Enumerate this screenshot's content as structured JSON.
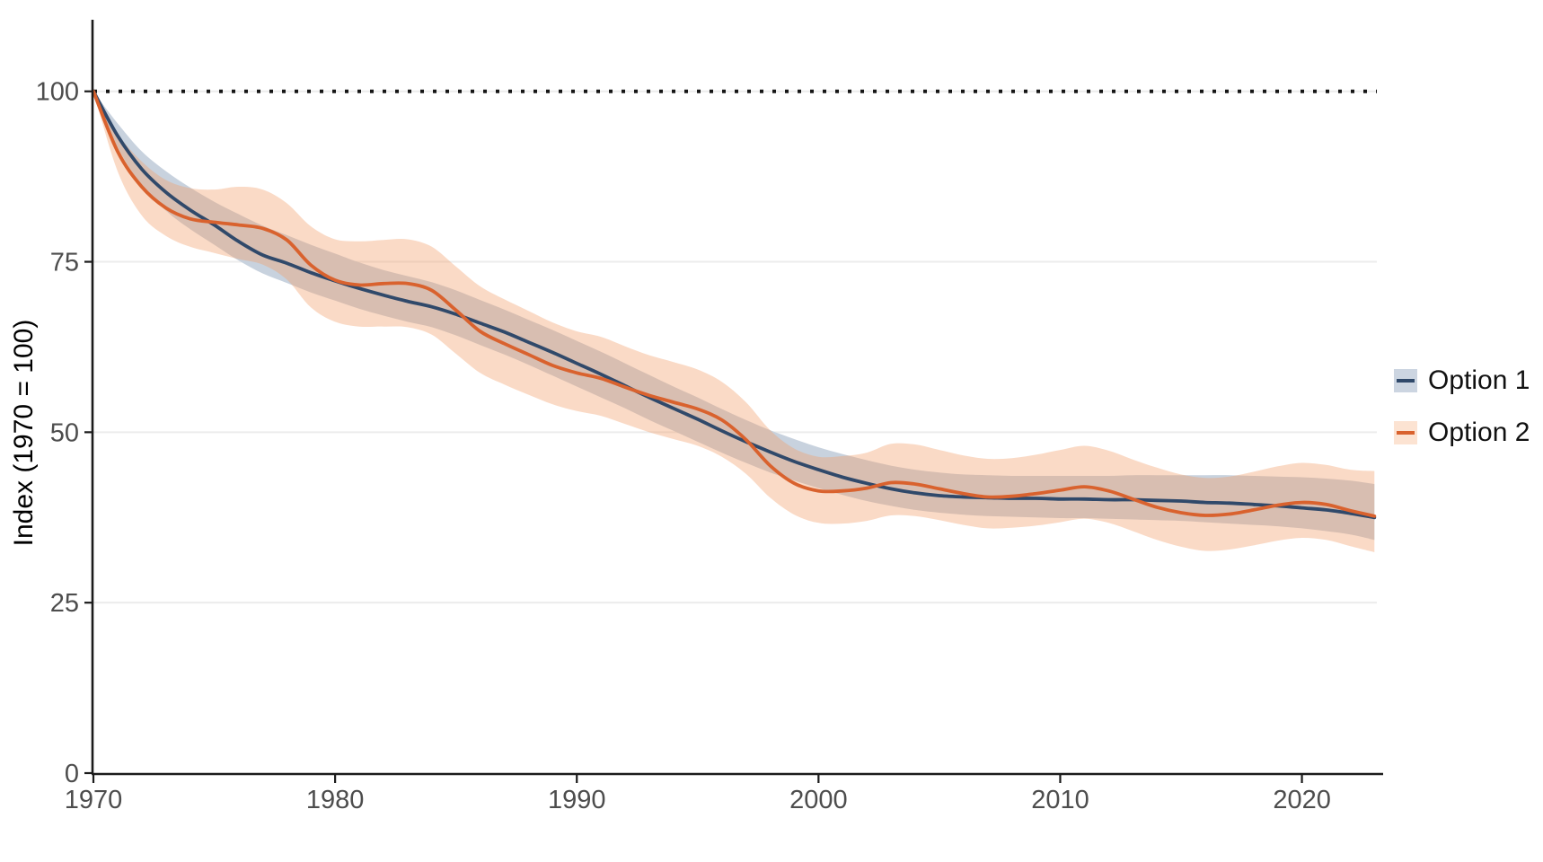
{
  "chart_data": {
    "type": "line",
    "title": "",
    "xlabel": "",
    "ylabel": "Index (1970 = 100)",
    "x_ticks": [
      1970,
      1980,
      1990,
      2000,
      2010,
      2020
    ],
    "y_ticks": [
      0,
      25,
      50,
      75,
      100
    ],
    "xlim": [
      1970,
      2023.1
    ],
    "ylim": [
      0,
      110.5
    ],
    "grid": "horizontal",
    "gridline_color": "#ececec",
    "axis_color": "#1b1b1b",
    "tick_label_color": "#4d4d4d",
    "reference_line": {
      "y": 100,
      "style": "dotted",
      "color": "#161616"
    },
    "legend_position": "right",
    "years": [
      1970,
      1971,
      1972,
      1973,
      1974,
      1975,
      1976,
      1977,
      1978,
      1979,
      1980,
      1981,
      1982,
      1983,
      1984,
      1985,
      1986,
      1987,
      1988,
      1989,
      1990,
      1991,
      1992,
      1993,
      1994,
      1995,
      1996,
      1997,
      1998,
      1999,
      2000,
      2001,
      2002,
      2003,
      2004,
      2005,
      2006,
      2007,
      2008,
      2009,
      2010,
      2011,
      2012,
      2013,
      2014,
      2015,
      2016,
      2017,
      2018,
      2019,
      2020,
      2021,
      2022,
      2023
    ],
    "series": [
      {
        "name": "Option 1",
        "color": "#30496a",
        "band_fill": "#c8d2de",
        "band_opacity": 1,
        "key_fill": "#ccd5e1",
        "values": [
          100,
          93.5,
          88.6,
          85.2,
          82.6,
          80.4,
          78.0,
          76.0,
          74.8,
          73.4,
          72.2,
          71.1,
          70.1,
          69.2,
          68.4,
          67.3,
          66.0,
          64.7,
          63.2,
          61.7,
          60.1,
          58.5,
          56.8,
          55.1,
          53.5,
          51.9,
          50.2,
          48.6,
          47.1,
          45.7,
          44.5,
          43.4,
          42.5,
          41.7,
          41.1,
          40.7,
          40.5,
          40.4,
          40.3,
          40.3,
          40.2,
          40.2,
          40.1,
          40.1,
          40.0,
          39.9,
          39.7,
          39.6,
          39.4,
          39.2,
          38.9,
          38.6,
          38.1,
          37.5
        ],
        "lower": [
          100,
          91.8,
          86.2,
          82.5,
          79.8,
          77.5,
          75.2,
          73.3,
          71.9,
          70.5,
          69.3,
          68.1,
          67.1,
          66.2,
          65.4,
          64.2,
          62.8,
          61.4,
          59.9,
          58.3,
          56.7,
          55.1,
          53.5,
          51.8,
          50.2,
          48.6,
          47.0,
          45.5,
          44.1,
          42.9,
          41.8,
          40.8,
          39.9,
          39.2,
          38.6,
          38.2,
          37.9,
          37.7,
          37.6,
          37.5,
          37.4,
          37.4,
          37.3,
          37.2,
          37.1,
          37.0,
          36.8,
          36.6,
          36.4,
          36.2,
          35.9,
          35.5,
          35.0,
          34.2
        ],
        "upper": [
          100,
          95.3,
          91.2,
          88.3,
          85.9,
          83.8,
          82.0,
          80.3,
          78.9,
          77.5,
          76.2,
          74.9,
          73.8,
          72.9,
          72.0,
          70.8,
          69.4,
          68.0,
          66.5,
          65.0,
          63.4,
          61.8,
          60.1,
          58.4,
          56.7,
          55.1,
          53.4,
          51.8,
          50.3,
          49.0,
          47.8,
          46.8,
          45.9,
          45.1,
          44.5,
          44.1,
          43.8,
          43.7,
          43.6,
          43.6,
          43.6,
          43.6,
          43.6,
          43.7,
          43.7,
          43.7,
          43.7,
          43.7,
          43.6,
          43.5,
          43.4,
          43.2,
          42.9,
          42.4
        ]
      },
      {
        "name": "Option 2",
        "color": "#d9622e",
        "band_fill": "rgba(243,158,106,0.38)",
        "band_opacity": 1,
        "key_fill": "#fce3d2",
        "values": [
          100,
          91.2,
          86.0,
          82.9,
          81.3,
          80.8,
          80.4,
          79.9,
          78.2,
          74.5,
          72.3,
          71.6,
          71.8,
          71.8,
          70.8,
          67.9,
          64.8,
          63.0,
          61.4,
          59.8,
          58.7,
          57.9,
          56.6,
          55.4,
          54.4,
          53.4,
          51.8,
          48.9,
          45.1,
          42.5,
          41.4,
          41.4,
          41.8,
          42.6,
          42.4,
          41.7,
          41.0,
          40.5,
          40.6,
          41.0,
          41.5,
          42.0,
          41.4,
          40.2,
          39.0,
          38.2,
          37.8,
          38.0,
          38.6,
          39.3,
          39.7,
          39.4,
          38.5,
          37.7
        ],
        "lower": [
          100,
          88.3,
          81.8,
          78.8,
          77.2,
          76.3,
          75.4,
          74.6,
          72.4,
          68.3,
          66.2,
          65.5,
          65.5,
          65.4,
          64.3,
          61.5,
          58.7,
          57.0,
          55.5,
          54.1,
          53.1,
          52.4,
          51.2,
          50.0,
          49.0,
          48.0,
          46.4,
          43.9,
          40.4,
          37.9,
          36.7,
          36.6,
          37.0,
          37.8,
          37.7,
          37.1,
          36.4,
          35.9,
          36.0,
          36.3,
          36.8,
          37.3,
          36.7,
          35.5,
          34.2,
          33.2,
          32.6,
          32.8,
          33.4,
          34.1,
          34.5,
          34.2,
          33.3,
          32.4
        ],
        "upper": [
          100,
          93.8,
          89.7,
          87.0,
          85.8,
          85.6,
          86.0,
          85.6,
          83.6,
          80.2,
          78.3,
          78.0,
          78.2,
          78.3,
          77.2,
          74.3,
          71.4,
          69.5,
          67.8,
          66.1,
          64.8,
          64.0,
          62.6,
          61.3,
          60.3,
          59.2,
          57.4,
          54.4,
          50.3,
          47.6,
          46.4,
          46.5,
          47.0,
          48.3,
          48.2,
          47.4,
          46.6,
          46.1,
          46.2,
          46.7,
          47.4,
          48.0,
          47.3,
          46.0,
          44.8,
          43.8,
          43.3,
          43.5,
          44.2,
          45.0,
          45.5,
          45.2,
          44.5,
          44.3
        ]
      }
    ]
  },
  "legend": {
    "items": [
      {
        "label": "Option 1"
      },
      {
        "label": "Option 2"
      }
    ]
  }
}
